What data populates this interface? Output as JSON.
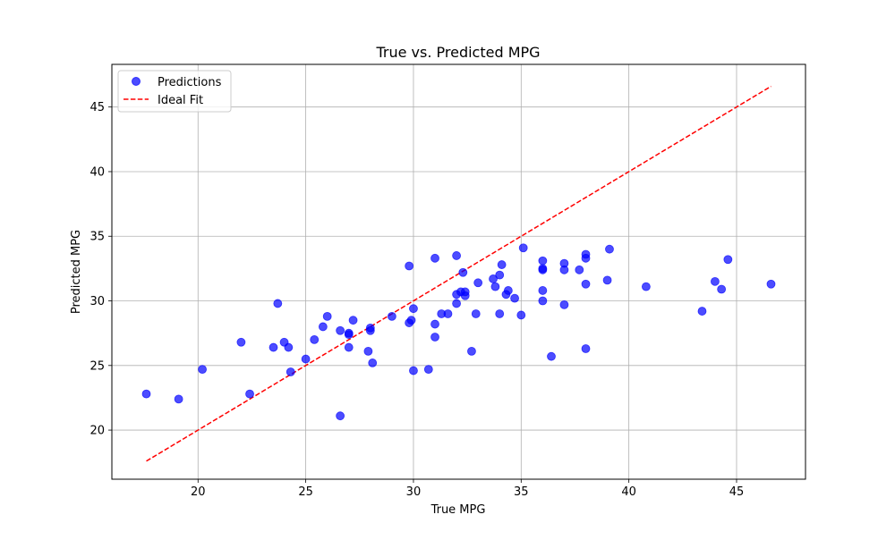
{
  "chart_data": {
    "type": "scatter",
    "title": "True vs. Predicted MPG",
    "xlabel": "True MPG",
    "ylabel": "Predicted MPG",
    "xlim": [
      16.0,
      48.2
    ],
    "ylim": [
      16.2,
      48.3
    ],
    "xticks": [
      20,
      25,
      30,
      35,
      40,
      45
    ],
    "yticks": [
      20,
      25,
      30,
      35,
      40,
      45
    ],
    "xtick_labels": [
      "20",
      "25",
      "30",
      "35",
      "40",
      "45"
    ],
    "ytick_labels": [
      "20",
      "25",
      "30",
      "35",
      "40",
      "45"
    ],
    "grid": true,
    "legend_position": "top-left",
    "series": [
      {
        "name": "Predictions",
        "kind": "scatter",
        "color": "#0000ff",
        "opacity": 0.7,
        "points": [
          [
            17.6,
            22.8
          ],
          [
            19.1,
            22.4
          ],
          [
            20.2,
            24.7
          ],
          [
            22.0,
            26.8
          ],
          [
            22.4,
            22.8
          ],
          [
            23.5,
            26.4
          ],
          [
            23.7,
            29.8
          ],
          [
            24.0,
            26.8
          ],
          [
            24.2,
            26.4
          ],
          [
            24.3,
            24.5
          ],
          [
            25.0,
            25.5
          ],
          [
            25.4,
            27.0
          ],
          [
            25.8,
            28.0
          ],
          [
            26.0,
            28.8
          ],
          [
            26.6,
            27.7
          ],
          [
            26.6,
            21.1
          ],
          [
            27.0,
            27.5
          ],
          [
            27.0,
            27.4
          ],
          [
            27.0,
            26.4
          ],
          [
            27.2,
            28.5
          ],
          [
            27.9,
            26.1
          ],
          [
            28.0,
            27.7
          ],
          [
            28.0,
            27.9
          ],
          [
            28.1,
            25.2
          ],
          [
            29.0,
            28.8
          ],
          [
            29.8,
            28.3
          ],
          [
            29.9,
            28.5
          ],
          [
            29.8,
            32.7
          ],
          [
            30.0,
            29.4
          ],
          [
            30.0,
            24.6
          ],
          [
            30.7,
            24.7
          ],
          [
            31.0,
            33.3
          ],
          [
            31.0,
            28.2
          ],
          [
            31.0,
            27.2
          ],
          [
            31.3,
            29.0
          ],
          [
            31.6,
            29.0
          ],
          [
            32.0,
            33.5
          ],
          [
            32.0,
            30.5
          ],
          [
            32.0,
            29.8
          ],
          [
            32.2,
            30.7
          ],
          [
            32.3,
            32.2
          ],
          [
            32.4,
            30.7
          ],
          [
            32.4,
            30.4
          ],
          [
            32.7,
            26.1
          ],
          [
            32.9,
            29.0
          ],
          [
            33.0,
            31.4
          ],
          [
            33.7,
            31.7
          ],
          [
            33.8,
            31.1
          ],
          [
            34.0,
            29.0
          ],
          [
            34.0,
            32.0
          ],
          [
            34.1,
            32.8
          ],
          [
            34.3,
            30.5
          ],
          [
            34.4,
            30.8
          ],
          [
            34.7,
            30.2
          ],
          [
            35.0,
            28.9
          ],
          [
            35.1,
            34.1
          ],
          [
            36.0,
            33.1
          ],
          [
            36.0,
            32.5
          ],
          [
            36.0,
            32.4
          ],
          [
            36.0,
            30.8
          ],
          [
            36.0,
            30.0
          ],
          [
            36.4,
            25.7
          ],
          [
            37.0,
            32.9
          ],
          [
            37.0,
            32.4
          ],
          [
            37.0,
            29.7
          ],
          [
            37.7,
            32.4
          ],
          [
            38.0,
            33.6
          ],
          [
            38.0,
            33.3
          ],
          [
            38.0,
            31.3
          ],
          [
            38.0,
            26.3
          ],
          [
            39.0,
            31.6
          ],
          [
            39.1,
            34.0
          ],
          [
            40.8,
            31.1
          ],
          [
            43.4,
            29.2
          ],
          [
            44.0,
            31.5
          ],
          [
            44.3,
            30.9
          ],
          [
            44.6,
            33.2
          ],
          [
            46.6,
            31.3
          ]
        ]
      },
      {
        "name": "Ideal Fit",
        "kind": "line",
        "style": "dashed",
        "color": "#ff0000",
        "points": [
          [
            17.6,
            17.6
          ],
          [
            46.6,
            46.6
          ]
        ]
      }
    ]
  }
}
